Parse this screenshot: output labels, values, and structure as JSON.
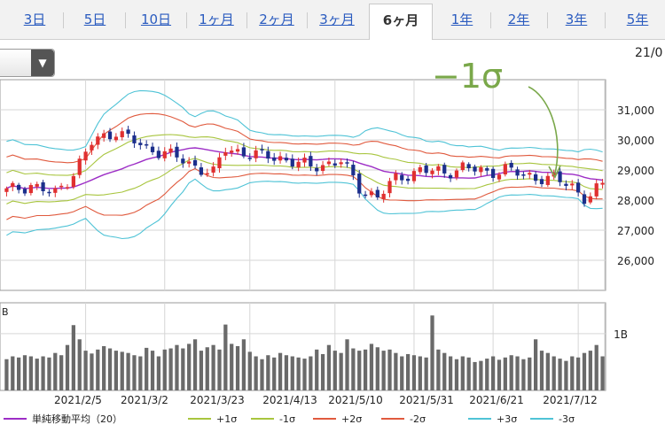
{
  "tabs": [
    {
      "label": "3日",
      "active": false
    },
    {
      "label": "5日",
      "active": false
    },
    {
      "label": "10日",
      "active": false
    },
    {
      "label": "1ヶ月",
      "active": false
    },
    {
      "label": "2ヶ月",
      "active": false
    },
    {
      "label": "3ヶ月",
      "active": false
    },
    {
      "label": "6ヶ月",
      "active": true
    },
    {
      "label": "1年",
      "active": false
    },
    {
      "label": "2年",
      "active": false
    },
    {
      "label": "3年",
      "active": false
    },
    {
      "label": "5年",
      "active": false
    }
  ],
  "date_label": "21/0",
  "annotation": {
    "text": "−1σ",
    "color": "#7aa84a"
  },
  "chart_data": {
    "type": "candlestick",
    "price_axis": {
      "ylim": [
        25000,
        32000
      ],
      "ticks": [
        26000,
        27000,
        28000,
        29000,
        30000,
        31000
      ],
      "tick_labels": [
        "26,000",
        "27,000",
        "28,000",
        "29,000",
        "30,000",
        "31,000"
      ]
    },
    "volume_axis": {
      "ticks": [
        "1B"
      ],
      "unit_label": "B"
    },
    "x_labels": [
      "2021/2/5",
      "2021/3/2",
      "2021/3/23",
      "2021/4/13",
      "2021/5/10",
      "2021/5/31",
      "2021/6/21",
      "2021/7/12"
    ],
    "colors": {
      "up": "#e03030",
      "down": "#1c2f8c",
      "volume": "#6a6a6a"
    },
    "anchors": [
      [
        0,
        28300
      ],
      [
        4,
        28500
      ],
      [
        8,
        28200
      ],
      [
        11,
        28900
      ],
      [
        14,
        29900
      ],
      [
        18,
        30300
      ],
      [
        23,
        29700
      ],
      [
        26,
        29600
      ],
      [
        30,
        29200
      ],
      [
        34,
        28900
      ],
      [
        36,
        29700
      ],
      [
        41,
        29500
      ],
      [
        45,
        29400
      ],
      [
        50,
        29100
      ],
      [
        55,
        29300
      ],
      [
        58,
        28400
      ],
      [
        61,
        28100
      ],
      [
        64,
        28700
      ],
      [
        68,
        29000
      ],
      [
        72,
        28900
      ],
      [
        75,
        29100
      ],
      [
        79,
        28900
      ],
      [
        82,
        29050
      ],
      [
        85,
        28800
      ],
      [
        88,
        28750
      ],
      [
        90,
        28700
      ],
      [
        93,
        28450
      ],
      [
        95,
        28100
      ],
      [
        96,
        28150
      ],
      [
        98,
        28500
      ]
    ],
    "volume": [
      0.55,
      0.6,
      0.58,
      0.62,
      0.6,
      0.56,
      0.6,
      0.58,
      0.66,
      0.62,
      0.8,
      1.15,
      0.9,
      0.7,
      0.65,
      0.72,
      0.78,
      0.74,
      0.7,
      0.68,
      0.66,
      0.62,
      0.6,
      0.75,
      0.7,
      0.6,
      0.72,
      0.74,
      0.8,
      0.74,
      0.82,
      0.9,
      0.7,
      0.76,
      0.8,
      0.72,
      1.16,
      0.82,
      0.78,
      0.9,
      0.68,
      0.6,
      0.55,
      0.62,
      0.58,
      0.66,
      0.62,
      0.6,
      0.58,
      0.56,
      0.6,
      0.72,
      0.64,
      0.8,
      0.7,
      0.66,
      0.9,
      0.74,
      0.7,
      0.72,
      0.82,
      0.76,
      0.7,
      0.72,
      0.66,
      0.6,
      0.64,
      0.62,
      0.6,
      0.58,
      1.32,
      0.72,
      0.66,
      0.6,
      0.55,
      0.6,
      0.58,
      0.5,
      0.52,
      0.56,
      0.6,
      0.54,
      0.58,
      0.62,
      0.6,
      0.55,
      0.58,
      0.9,
      0.7,
      0.66,
      0.6,
      0.56,
      0.52,
      0.6,
      0.58,
      0.66,
      0.7,
      0.8,
      0.6
    ],
    "legend": [
      {
        "label": "単純移動平均（20）",
        "color": "#9d2ec6"
      },
      {
        "label": "+1σ",
        "color": "#a8c53e"
      },
      {
        "label": "-1σ",
        "color": "#a8c53e"
      },
      {
        "label": "+2σ",
        "color": "#e05a3e"
      },
      {
        "label": "-2σ",
        "color": "#e05a3e"
      },
      {
        "label": "+3σ",
        "color": "#4fc3d6"
      },
      {
        "label": "-3σ",
        "color": "#4fc3d6"
      }
    ]
  }
}
